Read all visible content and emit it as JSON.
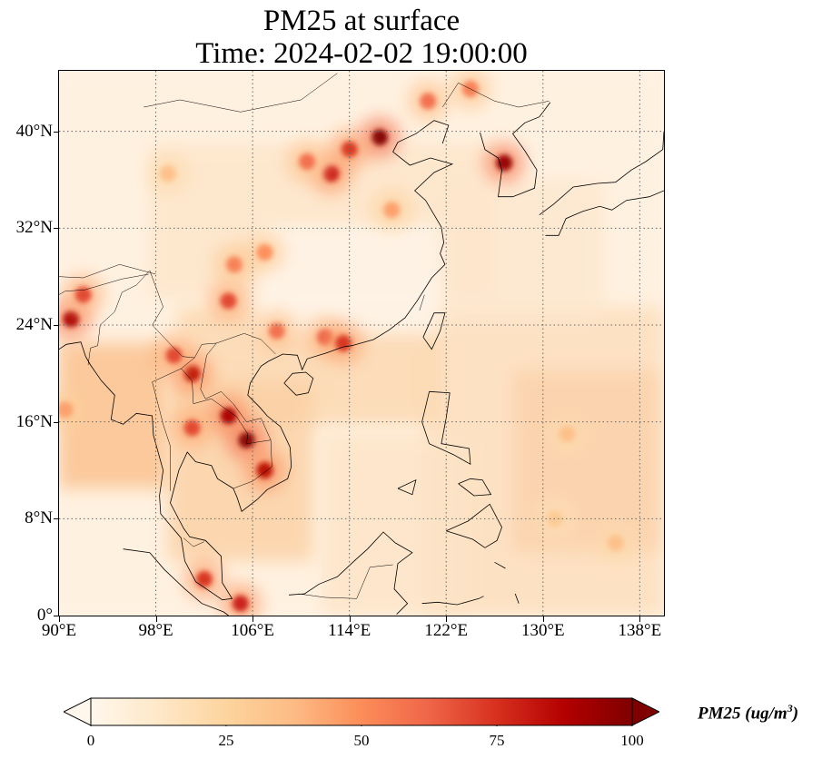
{
  "title": {
    "line1": "PM25 at surface",
    "line2": "Time: 2024-02-02 19:00:00"
  },
  "map": {
    "extent": {
      "lon_min": 90,
      "lon_max": 140,
      "lat_min": 0,
      "lat_max": 45
    },
    "lat_ticks": [
      {
        "value": 40,
        "label": "40°N"
      },
      {
        "value": 32,
        "label": "32°N"
      },
      {
        "value": 24,
        "label": "24°N"
      },
      {
        "value": 16,
        "label": "16°N"
      },
      {
        "value": 8,
        "label": "8°N"
      },
      {
        "value": 0,
        "label": "0°"
      }
    ],
    "lon_ticks": [
      {
        "value": 90,
        "label": "90°E"
      },
      {
        "value": 98,
        "label": "98°E"
      },
      {
        "value": 106,
        "label": "106°E"
      },
      {
        "value": 114,
        "label": "114°E"
      },
      {
        "value": 122,
        "label": "122°E"
      },
      {
        "value": 130,
        "label": "130°E"
      },
      {
        "value": 138,
        "label": "138°E"
      }
    ],
    "gridlines": "dotted"
  },
  "colorbar": {
    "title_main": "PM25 (ug/m",
    "title_sup": "3",
    "title_end": ")",
    "ticks": [
      {
        "value": 0,
        "label": "0"
      },
      {
        "value": 25,
        "label": "25"
      },
      {
        "value": 50,
        "label": "50"
      },
      {
        "value": 75,
        "label": "75"
      },
      {
        "value": 100,
        "label": "100"
      }
    ],
    "range": [
      0,
      100
    ],
    "colormap": "OrRd",
    "extend": "both",
    "colors": [
      "#fff7ec",
      "#fee8c8",
      "#fdd49e",
      "#fdbb84",
      "#fc8d59",
      "#ef6548",
      "#d7301f",
      "#b30000",
      "#7f0000"
    ]
  },
  "hotspots": [
    {
      "lon": 116.5,
      "lat": 39.5,
      "value": 100
    },
    {
      "lon": 114,
      "lat": 38.5,
      "value": 75
    },
    {
      "lon": 112.5,
      "lat": 36.5,
      "value": 80
    },
    {
      "lon": 110.5,
      "lat": 37.5,
      "value": 60
    },
    {
      "lon": 117.5,
      "lat": 33.5,
      "value": 45
    },
    {
      "lon": 120.5,
      "lat": 42.5,
      "value": 60
    },
    {
      "lon": 124,
      "lat": 43.5,
      "value": 55
    },
    {
      "lon": 126.8,
      "lat": 37.4,
      "value": 95
    },
    {
      "lon": 105.5,
      "lat": 14.5,
      "value": 100
    },
    {
      "lon": 104,
      "lat": 16.5,
      "value": 90
    },
    {
      "lon": 107,
      "lat": 12,
      "value": 85
    },
    {
      "lon": 101,
      "lat": 15.5,
      "value": 70
    },
    {
      "lon": 101,
      "lat": 20,
      "value": 85
    },
    {
      "lon": 99.5,
      "lat": 21.5,
      "value": 70
    },
    {
      "lon": 91,
      "lat": 24.5,
      "value": 90
    },
    {
      "lon": 92,
      "lat": 26.5,
      "value": 70
    },
    {
      "lon": 104,
      "lat": 26,
      "value": 70
    },
    {
      "lon": 108,
      "lat": 23.5,
      "value": 60
    },
    {
      "lon": 112,
      "lat": 23,
      "value": 65
    },
    {
      "lon": 113.5,
      "lat": 22.5,
      "value": 75
    },
    {
      "lon": 105,
      "lat": 1,
      "value": 80
    },
    {
      "lon": 102,
      "lat": 3,
      "value": 75
    },
    {
      "lon": 104.5,
      "lat": 29,
      "value": 55
    },
    {
      "lon": 107,
      "lat": 30,
      "value": 50
    },
    {
      "lon": 99,
      "lat": 36.5,
      "value": 35
    },
    {
      "lon": 90.5,
      "lat": 17,
      "value": 45
    },
    {
      "lon": 132,
      "lat": 15,
      "value": 35
    },
    {
      "lon": 136,
      "lat": 6,
      "value": 35
    },
    {
      "lon": 131,
      "lat": 8,
      "value": 30
    }
  ]
}
